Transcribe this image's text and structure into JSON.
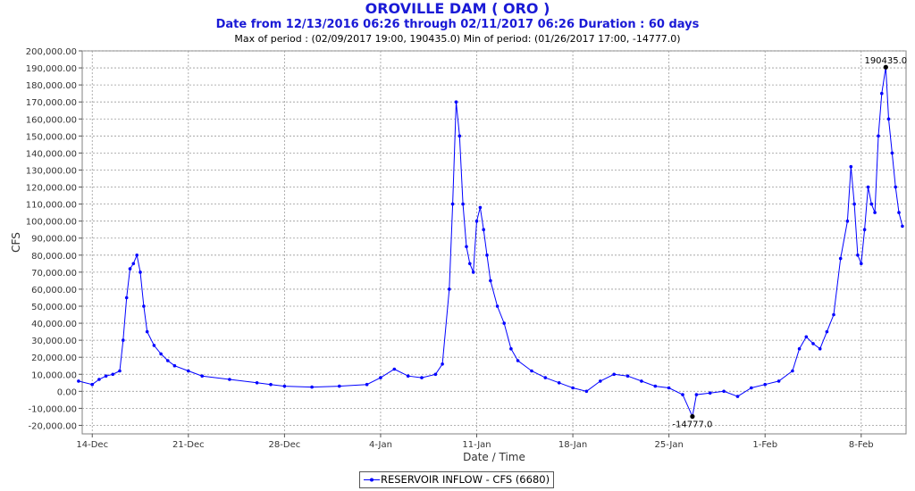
{
  "header": {
    "title": "OROVILLE DAM ( ORO )",
    "subtitle": "Date from 12/13/2016 06:26 through 02/11/2017 06:26 Duration : 60 days",
    "extremes": "Max of period : (02/09/2017 19:00, 190435.0)  Min of period: (01/26/2017 17:00,  -14777.0)"
  },
  "legend": {
    "label": "RESERVOIR INFLOW - CFS (6680)"
  },
  "chart_data": {
    "type": "line",
    "title": "OROVILLE DAM ( ORO )",
    "xlabel": "Date / Time",
    "ylabel": "CFS",
    "ylim": [
      -25000,
      200000
    ],
    "x_start": "12/13/2016 06:26",
    "x_end": "02/11/2017 06:26",
    "x_tick_labels": [
      "14-Dec",
      "21-Dec",
      "28-Dec",
      "4-Jan",
      "11-Jan",
      "18-Jan",
      "25-Jan",
      "1-Feb",
      "8-Feb"
    ],
    "y_tick_labels": [
      "-20,000.00",
      "-10,000.00",
      "0.00",
      "10,000.00",
      "20,000.00",
      "30,000.00",
      "40,000.00",
      "50,000.00",
      "60,000.00",
      "70,000.00",
      "80,000.00",
      "90,000.00",
      "100,000.00",
      "110,000.00",
      "120,000.00",
      "130,000.00",
      "140,000.00",
      "150,000.00",
      "160,000.00",
      "170,000.00",
      "180,000.00",
      "190,000.00",
      "200,000.00"
    ],
    "y_tick_values": [
      -20000,
      -10000,
      0,
      10000,
      20000,
      30000,
      40000,
      50000,
      60000,
      70000,
      80000,
      90000,
      100000,
      110000,
      120000,
      130000,
      140000,
      150000,
      160000,
      170000,
      180000,
      190000,
      200000
    ],
    "grid": true,
    "legend_position": "bottom-center",
    "line_color": "#0000ff",
    "annotations": [
      {
        "text": "190435.0",
        "x": "02/09/2017 19:00",
        "y": 190435
      },
      {
        "text": "-14777.0",
        "x": "01/26/2017 17:00",
        "y": -14777
      }
    ],
    "series": [
      {
        "name": "RESERVOIR INFLOW - CFS (6680)",
        "points": [
          [
            "12/13/2016",
            6000
          ],
          [
            "12/14/2016",
            4000
          ],
          [
            "12/14/2016 12:00",
            7000
          ],
          [
            "12/15/2016",
            9000
          ],
          [
            "12/15/2016 12:00",
            10000
          ],
          [
            "12/16/2016",
            12000
          ],
          [
            "12/16/2016 06:00",
            30000
          ],
          [
            "12/16/2016 12:00",
            55000
          ],
          [
            "12/16/2016 18:00",
            72000
          ],
          [
            "12/17/2016",
            75000
          ],
          [
            "12/17/2016 06:00",
            80000
          ],
          [
            "12/17/2016 12:00",
            70000
          ],
          [
            "12/17/2016 18:00",
            50000
          ],
          [
            "12/18/2016",
            35000
          ],
          [
            "12/18/2016 12:00",
            27000
          ],
          [
            "12/19/2016",
            22000
          ],
          [
            "12/19/2016 12:00",
            18000
          ],
          [
            "12/20/2016",
            15000
          ],
          [
            "12/21/2016",
            12000
          ],
          [
            "12/22/2016",
            9000
          ],
          [
            "12/24/2016",
            7000
          ],
          [
            "12/26/2016",
            5000
          ],
          [
            "12/27/2016",
            4000
          ],
          [
            "12/28/2016",
            3000
          ],
          [
            "12/30/2016",
            2500
          ],
          [
            "01/01/2017",
            3000
          ],
          [
            "01/03/2017",
            4000
          ],
          [
            "01/04/2017",
            8000
          ],
          [
            "01/05/2017",
            13000
          ],
          [
            "01/06/2017",
            9000
          ],
          [
            "01/07/2017",
            8000
          ],
          [
            "01/08/2017",
            10000
          ],
          [
            "01/08/2017 12:00",
            16000
          ],
          [
            "01/09/2017",
            60000
          ],
          [
            "01/09/2017 06:00",
            110000
          ],
          [
            "01/09/2017 12:00",
            170000
          ],
          [
            "01/09/2017 18:00",
            150000
          ],
          [
            "01/10/2017",
            110000
          ],
          [
            "01/10/2017 06:00",
            85000
          ],
          [
            "01/10/2017 12:00",
            75000
          ],
          [
            "01/10/2017 18:00",
            70000
          ],
          [
            "01/11/2017",
            100000
          ],
          [
            "01/11/2017 06:00",
            108000
          ],
          [
            "01/11/2017 12:00",
            95000
          ],
          [
            "01/11/2017 18:00",
            80000
          ],
          [
            "01/12/2017",
            65000
          ],
          [
            "01/12/2017 12:00",
            50000
          ],
          [
            "01/13/2017",
            40000
          ],
          [
            "01/13/2017 12:00",
            25000
          ],
          [
            "01/14/2017",
            18000
          ],
          [
            "01/15/2017",
            12000
          ],
          [
            "01/16/2017",
            8000
          ],
          [
            "01/17/2017",
            5000
          ],
          [
            "01/18/2017",
            2000
          ],
          [
            "01/19/2017",
            0
          ],
          [
            "01/20/2017",
            6000
          ],
          [
            "01/21/2017",
            10000
          ],
          [
            "01/22/2017",
            9000
          ],
          [
            "01/23/2017",
            6000
          ],
          [
            "01/24/2017",
            3000
          ],
          [
            "01/25/2017",
            2000
          ],
          [
            "01/26/2017",
            -2000
          ],
          [
            "01/26/2017 17:00",
            -14777
          ],
          [
            "01/27/2017",
            -2000
          ],
          [
            "01/28/2017",
            -1000
          ],
          [
            "01/29/2017",
            0
          ],
          [
            "01/30/2017",
            -3000
          ],
          [
            "01/31/2017",
            2000
          ],
          [
            "02/01/2017",
            4000
          ],
          [
            "02/02/2017",
            6000
          ],
          [
            "02/03/2017",
            12000
          ],
          [
            "02/03/2017 12:00",
            25000
          ],
          [
            "02/04/2017",
            32000
          ],
          [
            "02/04/2017 12:00",
            28000
          ],
          [
            "02/05/2017",
            25000
          ],
          [
            "02/05/2017 12:00",
            35000
          ],
          [
            "02/06/2017",
            45000
          ],
          [
            "02/06/2017 12:00",
            78000
          ],
          [
            "02/07/2017",
            100000
          ],
          [
            "02/07/2017 06:00",
            132000
          ],
          [
            "02/07/2017 12:00",
            110000
          ],
          [
            "02/07/2017 18:00",
            80000
          ],
          [
            "02/08/2017",
            75000
          ],
          [
            "02/08/2017 06:00",
            95000
          ],
          [
            "02/08/2017 12:00",
            120000
          ],
          [
            "02/08/2017 18:00",
            110000
          ],
          [
            "02/09/2017",
            105000
          ],
          [
            "02/09/2017 06:00",
            150000
          ],
          [
            "02/09/2017 12:00",
            175000
          ],
          [
            "02/09/2017 19:00",
            190435
          ],
          [
            "02/10/2017",
            160000
          ],
          [
            "02/10/2017 06:00",
            140000
          ],
          [
            "02/10/2017 12:00",
            120000
          ],
          [
            "02/10/2017 18:00",
            105000
          ],
          [
            "02/11/2017",
            97000
          ]
        ]
      }
    ]
  }
}
